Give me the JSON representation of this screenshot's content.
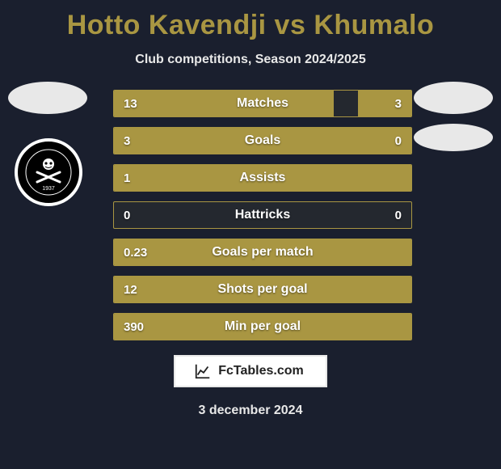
{
  "title": "Hotto Kavendji vs Khumalo",
  "subtitle": "Club competitions, Season 2024/2025",
  "date": "3 december 2024",
  "watermark": "FcTables.com",
  "colors": {
    "background": "#1a1f2e",
    "accent": "#a99642",
    "text_light": "#e8e8e8",
    "bar_border": "#a99642"
  },
  "club_badge": {
    "name": "Orlando Pirates",
    "year": "1937"
  },
  "bars": [
    {
      "label": "Matches",
      "left": "13",
      "right": "3",
      "left_pct": 74,
      "right_pct": 18,
      "show_right": true
    },
    {
      "label": "Goals",
      "left": "3",
      "right": "0",
      "left_pct": 100,
      "right_pct": 0,
      "show_right": true
    },
    {
      "label": "Assists",
      "left": "1",
      "right": "",
      "left_pct": 100,
      "right_pct": 0,
      "show_right": false
    },
    {
      "label": "Hattricks",
      "left": "0",
      "right": "0",
      "left_pct": 0,
      "right_pct": 0,
      "show_right": true
    },
    {
      "label": "Goals per match",
      "left": "0.23",
      "right": "",
      "left_pct": 100,
      "right_pct": 0,
      "show_right": false
    },
    {
      "label": "Shots per goal",
      "left": "12",
      "right": "",
      "left_pct": 100,
      "right_pct": 0,
      "show_right": false
    },
    {
      "label": "Min per goal",
      "left": "390",
      "right": "",
      "left_pct": 100,
      "right_pct": 0,
      "show_right": false
    }
  ]
}
